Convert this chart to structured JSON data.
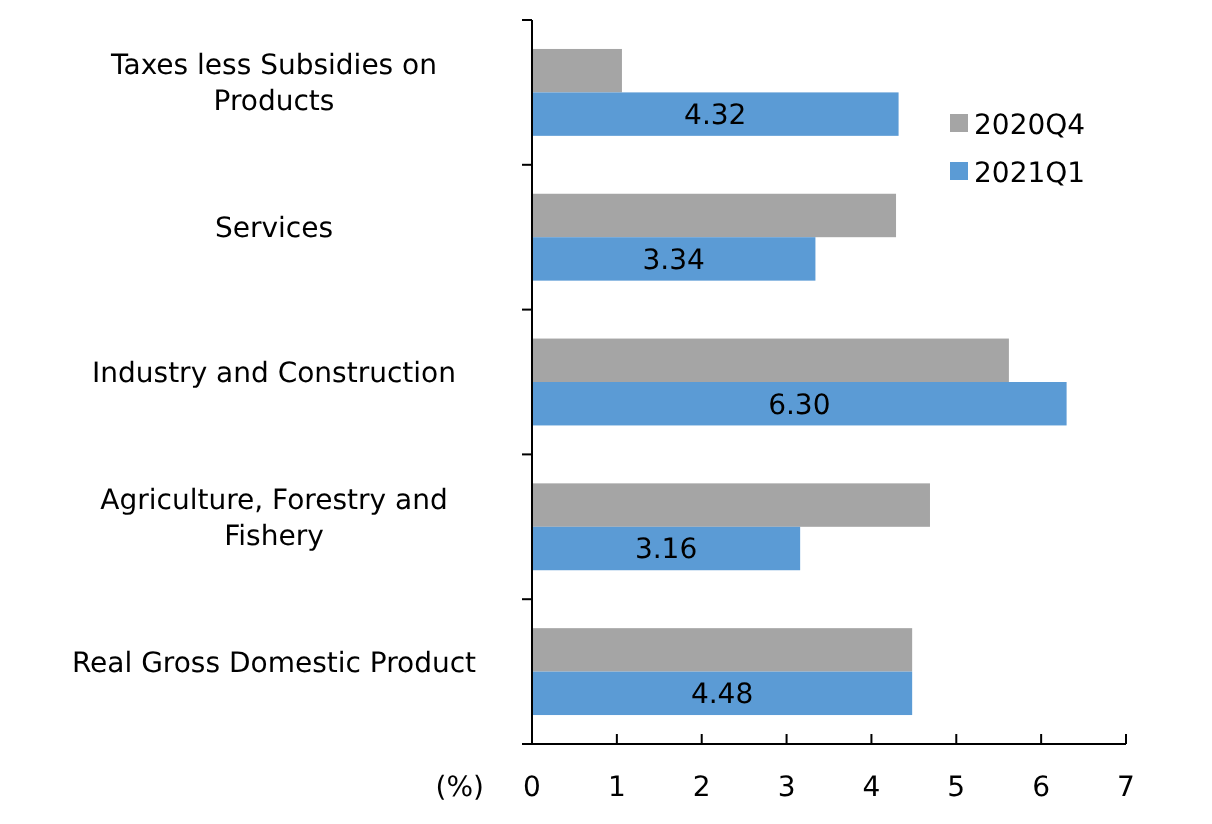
{
  "chart_data": {
    "type": "bar",
    "orientation": "horizontal",
    "xlabel": "(%)",
    "categories": [
      "Taxes less Subsidies on\nProducts",
      "Services",
      "Industry and Construction",
      "Agriculture, Forestry and\nFishery",
      "Real Gross Domestic Product"
    ],
    "series": [
      {
        "name": "2020Q4",
        "color": "#a5a5a5",
        "values": [
          1.06,
          4.29,
          5.62,
          4.69,
          4.48
        ]
      },
      {
        "name": "2021Q1",
        "color": "#5b9bd5",
        "values": [
          4.32,
          3.34,
          6.3,
          3.16,
          4.48
        ],
        "value_labels": [
          "4.32",
          "3.34",
          "6.30",
          "3.16",
          "4.48"
        ]
      }
    ],
    "xlim": [
      0,
      7
    ],
    "xticks": [
      0,
      1,
      2,
      3,
      4,
      5,
      6,
      7
    ],
    "grid": false,
    "legend": "right"
  }
}
